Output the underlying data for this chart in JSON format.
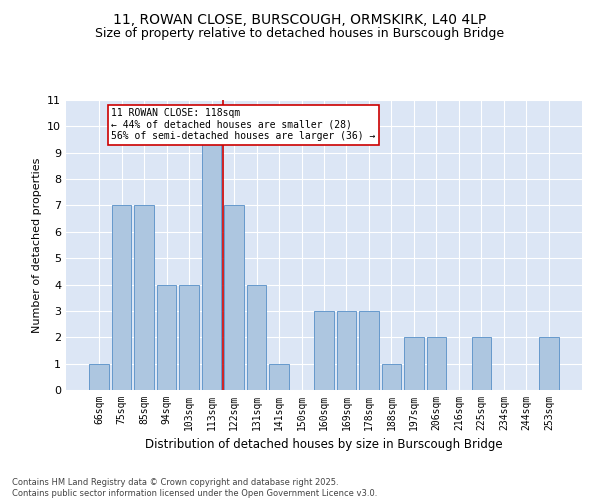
{
  "title1": "11, ROWAN CLOSE, BURSCOUGH, ORMSKIRK, L40 4LP",
  "title2": "Size of property relative to detached houses in Burscough Bridge",
  "xlabel": "Distribution of detached houses by size in Burscough Bridge",
  "ylabel": "Number of detached properties",
  "categories": [
    "66sqm",
    "75sqm",
    "85sqm",
    "94sqm",
    "103sqm",
    "113sqm",
    "122sqm",
    "131sqm",
    "141sqm",
    "150sqm",
    "160sqm",
    "169sqm",
    "178sqm",
    "188sqm",
    "197sqm",
    "206sqm",
    "216sqm",
    "225sqm",
    "234sqm",
    "244sqm",
    "253sqm"
  ],
  "values": [
    1,
    7,
    7,
    4,
    4,
    10,
    7,
    4,
    1,
    0,
    3,
    3,
    3,
    1,
    2,
    2,
    0,
    2,
    0,
    0,
    2
  ],
  "bar_color": "#adc6e0",
  "bar_edge_color": "#6699cc",
  "highlight_index": 5,
  "highlight_line_color": "#cc0000",
  "annotation_text": "11 ROWAN CLOSE: 118sqm\n← 44% of detached houses are smaller (28)\n56% of semi-detached houses are larger (36) →",
  "annotation_box_color": "#ffffff",
  "annotation_border_color": "#cc0000",
  "ylim": [
    0,
    11
  ],
  "yticks": [
    0,
    1,
    2,
    3,
    4,
    5,
    6,
    7,
    8,
    9,
    10,
    11
  ],
  "background_color": "#dce6f5",
  "footer": "Contains HM Land Registry data © Crown copyright and database right 2025.\nContains public sector information licensed under the Open Government Licence v3.0.",
  "title_fontsize": 10,
  "subtitle_fontsize": 9,
  "bar_width": 0.85
}
